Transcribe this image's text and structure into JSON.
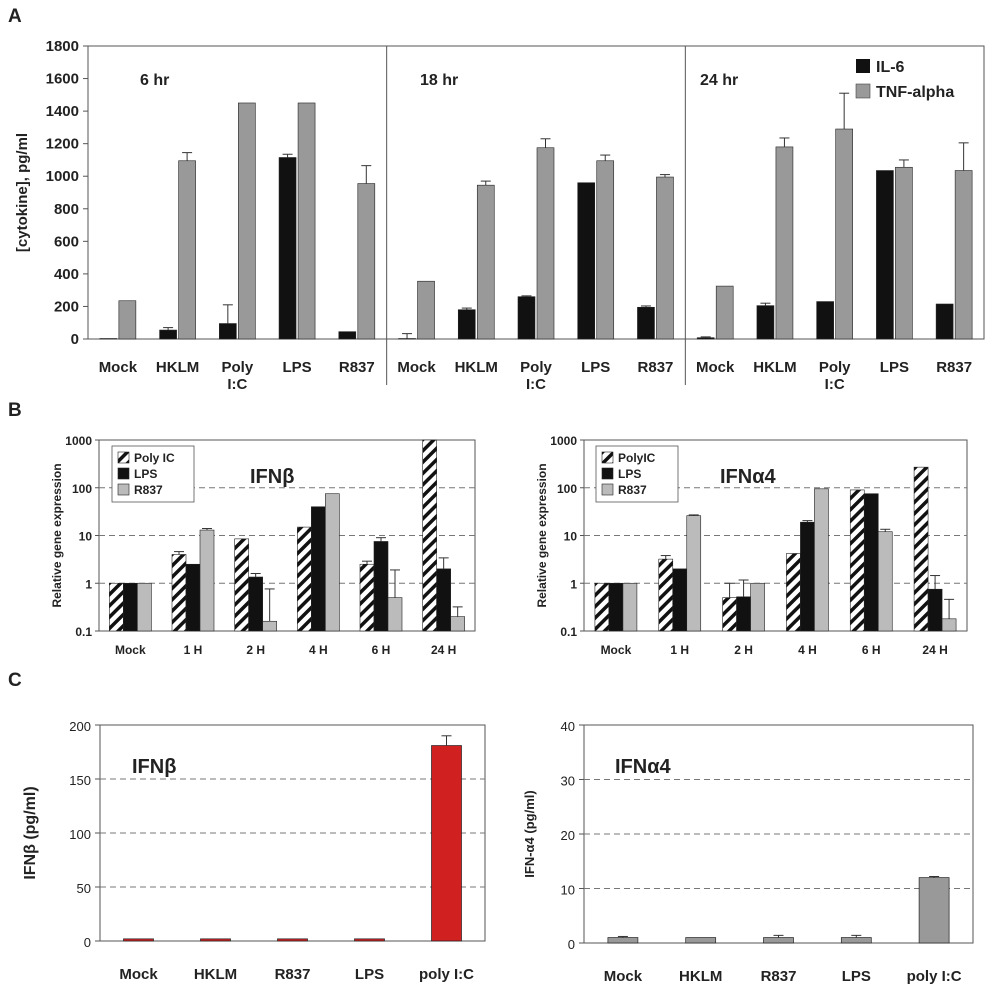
{
  "panels": {
    "a": "A",
    "b": "B",
    "c": "C"
  },
  "colors": {
    "il6": "#111111",
    "tnf": "#999999",
    "lps": "#111111",
    "r837": "#bbbbbb",
    "polyic": "#ffffff",
    "red": "#d02020",
    "grey": "#999999"
  },
  "chart_data": [
    {
      "id": "A",
      "type": "bar",
      "title": "",
      "ylabel": "[cytokine], pg/ml",
      "ylim": [
        0,
        1800
      ],
      "yticks": [
        "0",
        "200",
        "400",
        "600",
        "800",
        "1000",
        "1200",
        "1400",
        "1600",
        "1800"
      ],
      "legend": [
        "IL-6",
        "TNF-alpha"
      ],
      "groups": [
        {
          "label": "6 hr",
          "categories": [
            "Mock",
            "HKLM",
            "Poly\nI:C",
            "LPS",
            "R837"
          ],
          "series": [
            {
              "name": "IL-6",
              "values": [
                3,
                55,
                95,
                1115,
                45
              ],
              "errors": [
                0,
                15,
                115,
                20,
                0
              ]
            },
            {
              "name": "TNF-alpha",
              "values": [
                235,
                1095,
                1450,
                1450,
                955
              ],
              "errors": [
                0,
                50,
                0,
                0,
                110
              ]
            }
          ]
        },
        {
          "label": "18 hr",
          "categories": [
            "Mock",
            "HKLM",
            "Poly\nI:C",
            "LPS",
            "R837"
          ],
          "series": [
            {
              "name": "IL-6",
              "values": [
                3,
                180,
                260,
                960,
                195
              ],
              "errors": [
                30,
                10,
                5,
                0,
                8
              ]
            },
            {
              "name": "TNF-alpha",
              "values": [
                355,
                945,
                1175,
                1095,
                995
              ],
              "errors": [
                0,
                25,
                55,
                35,
                15
              ]
            }
          ]
        },
        {
          "label": "24 hr",
          "categories": [
            "Mock",
            "HKLM",
            "Poly\nI:C",
            "LPS",
            "R837"
          ],
          "series": [
            {
              "name": "IL-6",
              "values": [
                8,
                205,
                230,
                1035,
                215
              ],
              "errors": [
                5,
                15,
                0,
                0,
                0
              ]
            },
            {
              "name": "TNF-alpha",
              "values": [
                325,
                1180,
                1290,
                1055,
                1035
              ],
              "errors": [
                0,
                55,
                220,
                45,
                170
              ]
            }
          ]
        }
      ]
    },
    {
      "id": "B-left",
      "type": "bar",
      "title": "IFNβ",
      "ylabel": "Relative gene expression",
      "yscale": "log",
      "ylim": [
        0.1,
        1000
      ],
      "yticks": [
        "0.1",
        "1",
        "10",
        "100",
        "1000"
      ],
      "categories": [
        "Mock",
        "1 H",
        "2 H",
        "4 H",
        "6 H",
        "24 H"
      ],
      "series": [
        {
          "name": "Poly IC",
          "values": [
            1,
            4,
            8.5,
            15,
            2.5,
            1000
          ],
          "errors": [
            0,
            0.6,
            0,
            0,
            0.4,
            0
          ]
        },
        {
          "name": "LPS",
          "values": [
            1,
            2.5,
            1.35,
            40,
            7.5,
            2
          ],
          "errors": [
            0,
            0,
            0.25,
            0,
            1.5,
            1.4
          ]
        },
        {
          "name": "R837",
          "values": [
            1,
            13,
            0.16,
            75,
            0.5,
            0.2
          ],
          "errors": [
            0,
            1,
            0.6,
            0,
            1.4,
            0.12
          ]
        }
      ]
    },
    {
      "id": "B-right",
      "type": "bar",
      "title": "IFNα4",
      "ylabel": "Relative gene expression",
      "yscale": "log",
      "ylim": [
        0.1,
        1000
      ],
      "yticks": [
        "0.1",
        "1",
        "10",
        "100",
        "1000"
      ],
      "categories": [
        "Mock",
        "1 H",
        "2 H",
        "4 H",
        "6 H",
        "24 H"
      ],
      "series": [
        {
          "name": "PolyIC",
          "values": [
            1,
            3.2,
            0.5,
            4.2,
            90,
            270
          ],
          "errors": [
            0,
            0.6,
            0.5,
            0,
            0,
            0
          ]
        },
        {
          "name": "LPS",
          "values": [
            1,
            2,
            0.52,
            19,
            75,
            0.75
          ],
          "errors": [
            0,
            0,
            0.65,
            1.5,
            0,
            0.7
          ]
        },
        {
          "name": "R837",
          "values": [
            1,
            26,
            1,
            95,
            12,
            0.18
          ],
          "errors": [
            0,
            1,
            0,
            0,
            1.5,
            0.28
          ]
        }
      ]
    },
    {
      "id": "C-left",
      "type": "bar",
      "title": "IFNβ",
      "ylabel": "IFNβ (pg/ml)",
      "ylim": [
        0,
        200
      ],
      "yticks": [
        "0",
        "50",
        "100",
        "150",
        "200"
      ],
      "categories": [
        "Mock",
        "HKLM",
        "R837",
        "LPS",
        "poly I:C"
      ],
      "values": [
        2,
        2,
        2,
        2,
        181
      ],
      "errors": [
        0,
        0,
        0,
        0,
        9
      ]
    },
    {
      "id": "C-right",
      "type": "bar",
      "title": "IFNα4",
      "ylabel": "IFN-α4 (pg/ml)",
      "ylim": [
        0,
        40
      ],
      "yticks": [
        "0",
        "10",
        "20",
        "30",
        "40"
      ],
      "categories": [
        "Mock",
        "HKLM",
        "R837",
        "LPS",
        "poly I:C"
      ],
      "values": [
        1,
        1,
        1,
        1,
        12
      ],
      "errors": [
        0.2,
        0,
        0.4,
        0.4,
        0.2
      ]
    }
  ]
}
